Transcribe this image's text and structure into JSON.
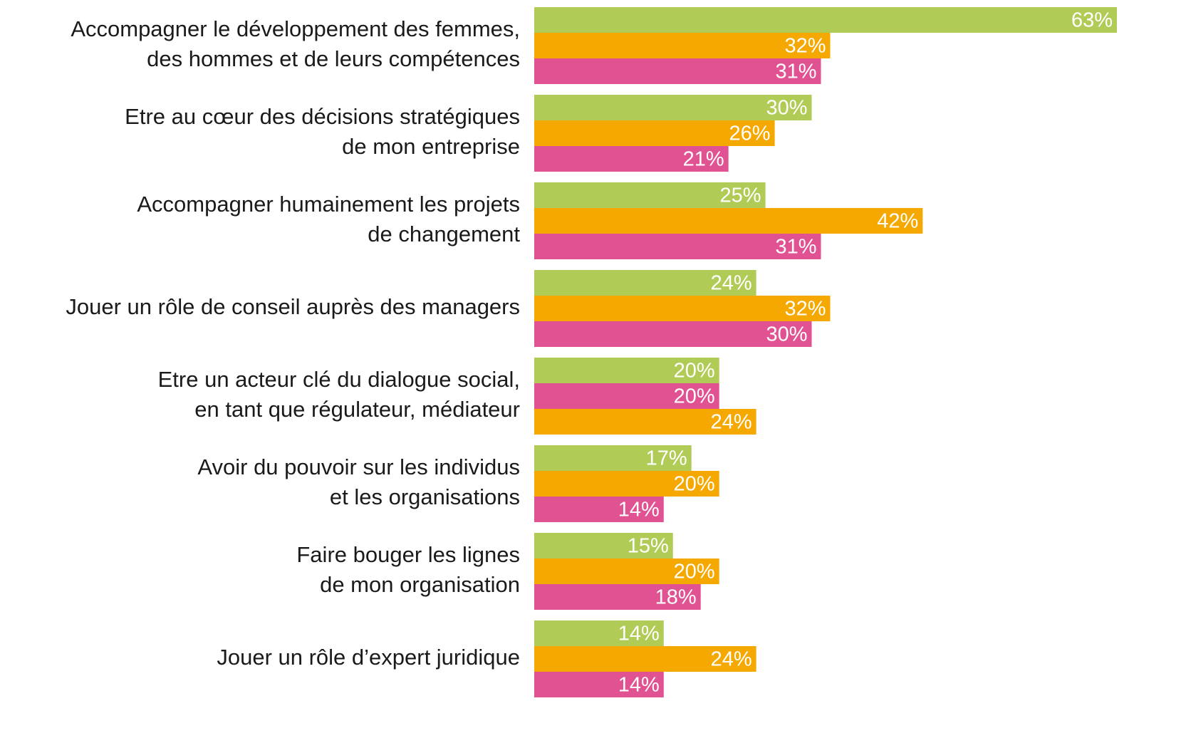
{
  "chart_data": {
    "type": "bar",
    "orientation": "horizontal",
    "categories": [
      [
        "Accompagner le développement des femmes,",
        "des hommes et de leurs compétences"
      ],
      [
        "Etre au cœur des décisions stratégiques",
        "de mon entreprise"
      ],
      [
        "Accompagner humainement les projets",
        "de changement"
      ],
      [
        "Jouer un rôle de conseil auprès des managers"
      ],
      [
        "Etre un acteur clé du dialogue social,",
        "en tant que régulateur, médiateur"
      ],
      [
        "Avoir du pouvoir sur les individus",
        "et les organisations"
      ],
      [
        "Faire bouger les lignes",
        "de mon organisation"
      ],
      [
        "Jouer un rôle d’expert juridique"
      ]
    ],
    "series": [
      {
        "colors": [
          "#b1cc56",
          "#b1cc56",
          "#b1cc56",
          "#b1cc56",
          "#b1cc56",
          "#b1cc56",
          "#b1cc56",
          "#b1cc56"
        ],
        "values": [
          63,
          30,
          25,
          24,
          20,
          17,
          15,
          14
        ],
        "value_labels": [
          "63%",
          "30%",
          "25%",
          "24%",
          "20%",
          "17%",
          "15%",
          "14%"
        ]
      },
      {
        "colors": [
          "#f5a800",
          "#f5a800",
          "#f5a800",
          "#f5a800",
          "#e05291",
          "#f5a800",
          "#f5a800",
          "#f5a800"
        ],
        "values": [
          32,
          26,
          42,
          32,
          20,
          20,
          20,
          24
        ],
        "value_labels": [
          "32%",
          "26%",
          "42%",
          "32%",
          "20%",
          "20%",
          "20%",
          "24%"
        ]
      },
      {
        "colors": [
          "#e05291",
          "#e05291",
          "#e05291",
          "#e05291",
          "#f5a800",
          "#e05291",
          "#e05291",
          "#e05291"
        ],
        "values": [
          31,
          21,
          31,
          30,
          24,
          14,
          18,
          14
        ],
        "value_labels": [
          "31%",
          "21%",
          "31%",
          "30%",
          "24%",
          "14%",
          "18%",
          "14%"
        ]
      }
    ],
    "xlim": [
      0,
      63
    ]
  }
}
